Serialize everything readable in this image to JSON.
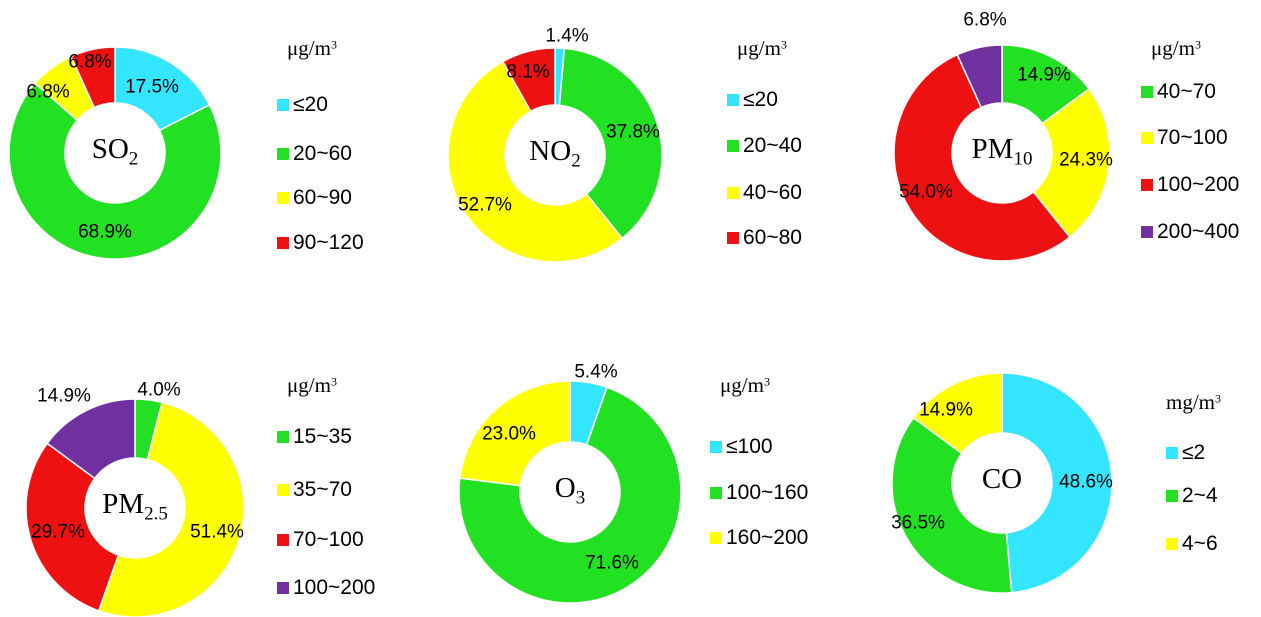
{
  "colors": {
    "cyan": "#33e5ff",
    "green": "#22e022",
    "yellow": "#ffff00",
    "red": "#ee1111",
    "purple": "#7030a0"
  },
  "chart_data": [
    {
      "type": "pie",
      "donut": true,
      "center_label": {
        "base": "SO",
        "sub": "2"
      },
      "unit": {
        "base": "μg/m",
        "sup": "3"
      },
      "categories": [
        "≤20",
        "20~60",
        "60~90",
        "90~120"
      ],
      "values": [
        17.5,
        68.9,
        6.8,
        6.8
      ],
      "labels": [
        "17.5%",
        "68.9%",
        "6.8%",
        "6.8%"
      ],
      "colors": [
        "#33e5ff",
        "#22e022",
        "#ffff00",
        "#ee1111"
      ]
    },
    {
      "type": "pie",
      "donut": true,
      "center_label": {
        "base": "NO",
        "sub": "2"
      },
      "unit": {
        "base": "μg/m",
        "sup": "3"
      },
      "categories": [
        "≤20",
        "20~40",
        "40~60",
        "60~80"
      ],
      "values": [
        1.4,
        37.8,
        52.7,
        8.1
      ],
      "labels": [
        "1.4%",
        "37.8%",
        "52.7%",
        "8.1%"
      ],
      "colors": [
        "#33e5ff",
        "#22e022",
        "#ffff00",
        "#ee1111"
      ]
    },
    {
      "type": "pie",
      "donut": true,
      "center_label": {
        "base": "PM",
        "sub": "10"
      },
      "unit": {
        "base": "μg/m",
        "sup": "3"
      },
      "categories": [
        "40~70",
        "70~100",
        "100~200",
        "200~400"
      ],
      "values": [
        14.9,
        24.3,
        54.0,
        6.8
      ],
      "labels": [
        "14.9%",
        "24.3%",
        "54.0%",
        "6.8%"
      ],
      "colors": [
        "#22e022",
        "#ffff00",
        "#ee1111",
        "#7030a0"
      ]
    },
    {
      "type": "pie",
      "donut": true,
      "center_label": {
        "base": "PM",
        "sub": "2.5"
      },
      "unit": {
        "base": "μg/m",
        "sup": "3"
      },
      "categories": [
        "15~35",
        "35~70",
        "70~100",
        "100~200"
      ],
      "values": [
        4.0,
        51.4,
        29.7,
        14.9
      ],
      "labels": [
        "4.0%",
        "51.4%",
        "29.7%",
        "14.9%"
      ],
      "colors": [
        "#22e022",
        "#ffff00",
        "#ee1111",
        "#7030a0"
      ]
    },
    {
      "type": "pie",
      "donut": true,
      "center_label": {
        "base": "O",
        "sub": "3"
      },
      "unit": {
        "base": "μg/m",
        "sup": "3"
      },
      "categories": [
        "≤100",
        "100~160",
        "160~200"
      ],
      "values": [
        5.4,
        71.6,
        23.0
      ],
      "labels": [
        "5.4%",
        "71.6%",
        "23.0%"
      ],
      "colors": [
        "#33e5ff",
        "#22e022",
        "#ffff00"
      ]
    },
    {
      "type": "pie",
      "donut": true,
      "center_label": {
        "base": "CO",
        "sub": ""
      },
      "unit": {
        "base": "mg/m",
        "sup": "3"
      },
      "categories": [
        "≤2",
        "2~4",
        "4~6"
      ],
      "values": [
        48.6,
        36.5,
        14.9
      ],
      "labels": [
        "48.6%",
        "36.5%",
        "14.9%"
      ],
      "colors": [
        "#33e5ff",
        "#22e022",
        "#ffff00"
      ]
    }
  ]
}
